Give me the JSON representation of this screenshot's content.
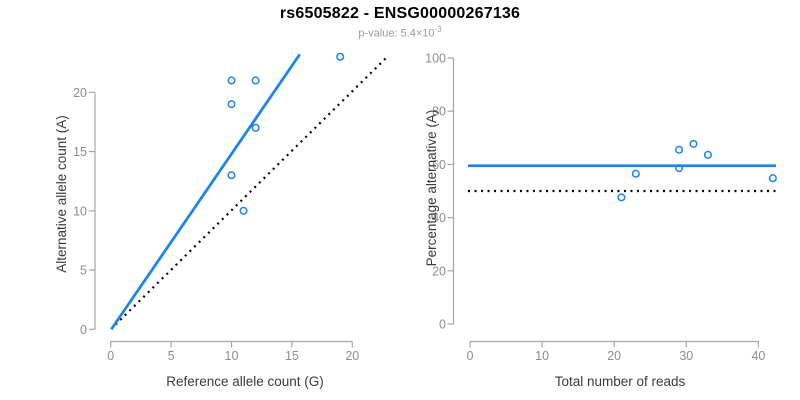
{
  "figure": {
    "title": "rs6505822 - ENSG00000267136",
    "subtitle_prefix": "p-value: 5.4",
    "subtitle_times": "×10",
    "subtitle_exponent": "-3"
  },
  "colors": {
    "point_line_blue": "#1C86EE",
    "dotted_line_black": "#000000",
    "axis_line_gray": "#A6A6A6",
    "tick_label_gray": "#8E8E8E",
    "axis_title_dark": "#3A3A3A"
  },
  "chart_data": [
    {
      "type": "scatter",
      "panel": "left",
      "xlabel": "Reference allele count (G)",
      "ylabel": "Alternative allele count (A)",
      "xlim": [
        0,
        22.5
      ],
      "ylim": [
        0,
        23.5
      ],
      "xticks": [
        0,
        5,
        10,
        15,
        20
      ],
      "yticks": [
        0,
        5,
        10,
        15,
        20
      ],
      "grid": false,
      "legend": "none",
      "points": [
        {
          "x": 11,
          "y": 10
        },
        {
          "x": 10,
          "y": 13
        },
        {
          "x": 12,
          "y": 17
        },
        {
          "x": 10,
          "y": 19
        },
        {
          "x": 10,
          "y": 21
        },
        {
          "x": 12,
          "y": 21
        },
        {
          "x": 19,
          "y": 23
        }
      ],
      "lines": [
        {
          "name": "identity-line",
          "style": "dotted",
          "color": "#000000",
          "x1": 0.4,
          "y1": 0.4,
          "x2": 23.0,
          "y2": 23.1
        },
        {
          "name": "fit-line",
          "style": "solid",
          "color": "#1C86EE",
          "x1": 0.05,
          "y1": 0.0,
          "x2": 15.65,
          "y2": 23.2
        }
      ]
    },
    {
      "type": "scatter",
      "panel": "right",
      "xlabel": "Total number of reads",
      "ylabel": "Percentage alternative (A)",
      "xlim": [
        0,
        42.5
      ],
      "ylim": [
        0,
        100
      ],
      "xticks": [
        0,
        10,
        20,
        30,
        40
      ],
      "yticks": [
        0,
        20,
        40,
        60,
        80,
        100
      ],
      "grid": false,
      "legend": "none",
      "points": [
        {
          "x": 21,
          "y": 47.6
        },
        {
          "x": 23,
          "y": 56.5
        },
        {
          "x": 29,
          "y": 58.6
        },
        {
          "x": 29,
          "y": 65.5
        },
        {
          "x": 31,
          "y": 67.7
        },
        {
          "x": 33,
          "y": 63.6
        },
        {
          "x": 42,
          "y": 54.8
        }
      ],
      "lines": [
        {
          "name": "null-line",
          "style": "dotted",
          "color": "#000000",
          "y": 50
        },
        {
          "name": "fit-line",
          "style": "solid",
          "color": "#1C86EE",
          "y": 59.5
        }
      ]
    }
  ]
}
